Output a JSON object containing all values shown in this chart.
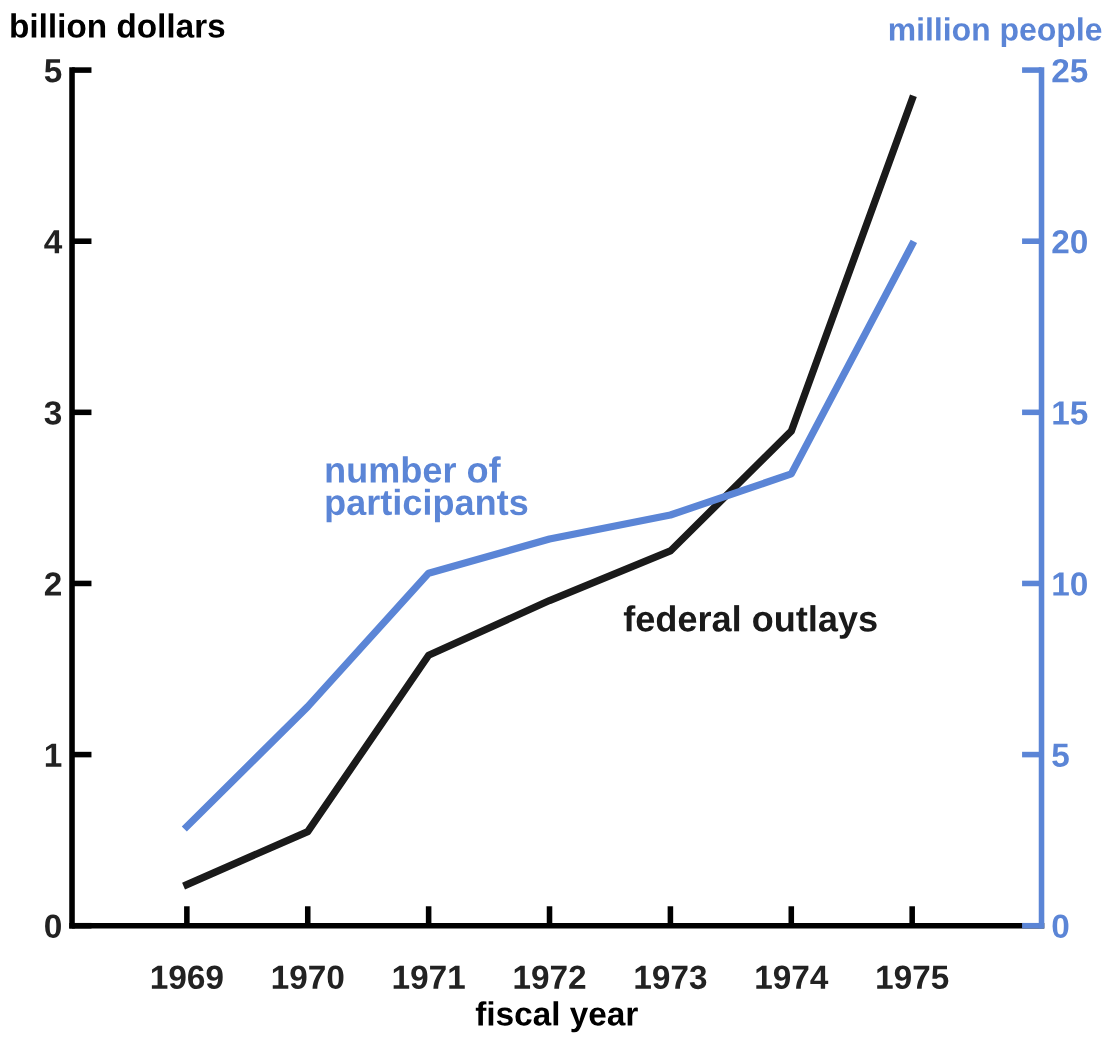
{
  "chart_data": {
    "type": "line",
    "xlabel": "fiscal year",
    "ylabel": "billion dollars",
    "y2label": "million people",
    "x": [
      1969,
      1970,
      1971,
      1972,
      1973,
      1974,
      1975
    ],
    "xlim": [
      1968.05,
      1976.07
    ],
    "xticks": [
      1969,
      1970,
      1971,
      1972,
      1973,
      1974,
      1975
    ],
    "ylim": [
      0,
      5
    ],
    "yticks": [
      0,
      1,
      2,
      3,
      4,
      5
    ],
    "y2lim": [
      0,
      25
    ],
    "y2ticks": [
      0,
      5,
      10,
      15,
      20,
      25
    ],
    "series": [
      {
        "name": "federal outlays",
        "color": "#1a1a1a",
        "values": [
          0.24,
          0.55,
          1.58,
          1.9,
          2.19,
          2.89,
          4.83
        ]
      },
      {
        "name": "number of participants",
        "color": "#5b85d6",
        "axis": "y2",
        "values": [
          2.9,
          6.4,
          10.3,
          11.3,
          12.0,
          13.2,
          19.9
        ]
      }
    ],
    "grid": false,
    "legend": false,
    "marker": "none",
    "line_style": "solid"
  }
}
